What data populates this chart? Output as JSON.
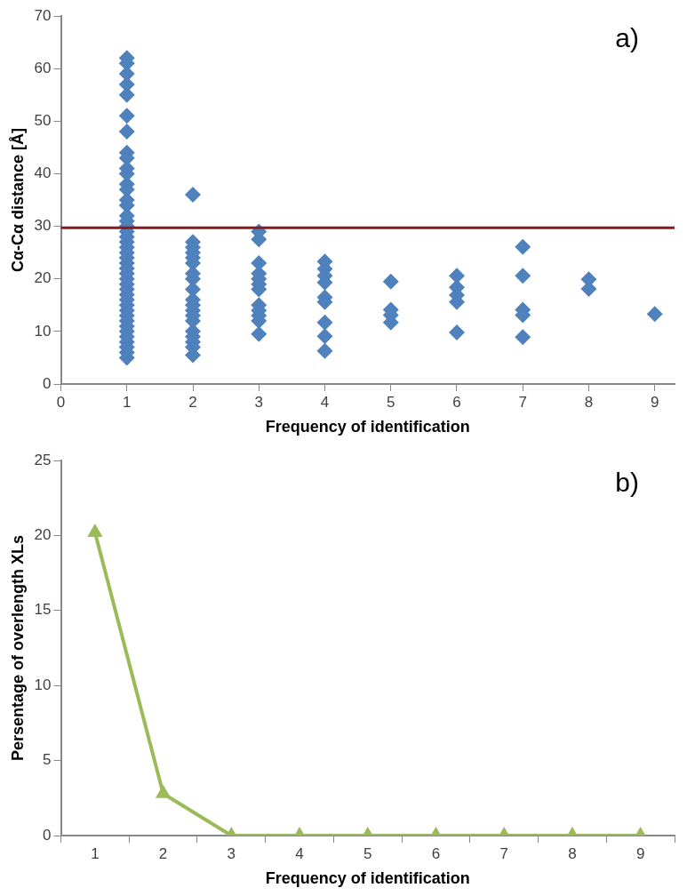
{
  "chart_data": [
    {
      "type": "scatter",
      "xlabel": "Frequency of identification",
      "ylabel": "Cα-Cα distance [Å]",
      "annotations": [
        "a)"
      ],
      "marker": "diamond",
      "grid": false,
      "legend": false,
      "xlim": [
        0,
        9.3
      ],
      "xticks": [
        0,
        1,
        2,
        3,
        4,
        5,
        6,
        7,
        8,
        9
      ],
      "ylim": [
        0,
        70
      ],
      "yticks": [
        0,
        10,
        20,
        30,
        40,
        50,
        60,
        70
      ],
      "ref_lines": [
        {
          "axis": "y",
          "value": 29.7,
          "color": "#8b1a1a"
        }
      ],
      "series": [
        {
          "color": "#4f81bd",
          "x": [
            1,
            1,
            1,
            1,
            1,
            1,
            1,
            1,
            1,
            1,
            1,
            1,
            1,
            1,
            1,
            1,
            1,
            1,
            1,
            1,
            1,
            1,
            1,
            1,
            1,
            1,
            1,
            1,
            1,
            1,
            1,
            1,
            1,
            1,
            1,
            1,
            1,
            1,
            1,
            1,
            1,
            1,
            1,
            2,
            2,
            2,
            2,
            2,
            2,
            2,
            2,
            2,
            2,
            2,
            2,
            2,
            2,
            2,
            2,
            2,
            2,
            2,
            3,
            3,
            3,
            3,
            3,
            3,
            3,
            3,
            3,
            3,
            3,
            3,
            4,
            4,
            4,
            4,
            4,
            4,
            4,
            4,
            4,
            5,
            5,
            5,
            5,
            6,
            6,
            6,
            6,
            6,
            7,
            7,
            7,
            7,
            7,
            8,
            8,
            9
          ],
          "values": [
            62,
            61,
            59,
            57,
            55,
            51,
            48,
            44,
            43,
            41,
            40,
            38,
            37,
            35,
            34,
            32,
            31,
            30,
            29,
            28,
            27,
            26,
            25,
            24,
            23,
            22,
            21,
            20,
            19,
            18,
            17,
            16,
            15,
            14,
            13,
            12,
            11,
            10,
            9,
            8,
            7,
            6,
            5,
            36,
            27,
            26,
            25,
            24,
            23,
            21,
            20,
            18,
            16,
            15,
            14,
            13,
            12,
            10,
            9,
            8,
            7,
            5.5,
            29,
            27.5,
            23,
            21,
            20,
            19,
            18,
            15,
            14,
            13,
            12,
            9.5,
            23.3,
            21.9,
            20.6,
            19.3,
            16.5,
            15.6,
            11.7,
            9.1,
            6.3,
            19.5,
            14.1,
            13.1,
            11.7,
            20.6,
            18.4,
            16.9,
            15.6,
            9.8,
            26.1,
            20.6,
            14.1,
            13.1,
            8.9,
            19.9,
            18.1,
            13.3
          ]
        }
      ]
    },
    {
      "type": "line",
      "xlabel": "Frequency of identification",
      "ylabel": "Persentage of overlength XLs",
      "annotations": [
        "b)"
      ],
      "marker": "triangle",
      "grid": false,
      "legend": false,
      "categories": [
        "1",
        "2",
        "3",
        "4",
        "5",
        "6",
        "7",
        "8",
        "9"
      ],
      "ylim": [
        0,
        25
      ],
      "yticks": [
        0,
        5,
        10,
        15,
        20,
        25
      ],
      "series": [
        {
          "color": "#9bbb59",
          "values": [
            20.2,
            2.8,
            0,
            0,
            0,
            0,
            0,
            0,
            0
          ]
        }
      ]
    }
  ]
}
